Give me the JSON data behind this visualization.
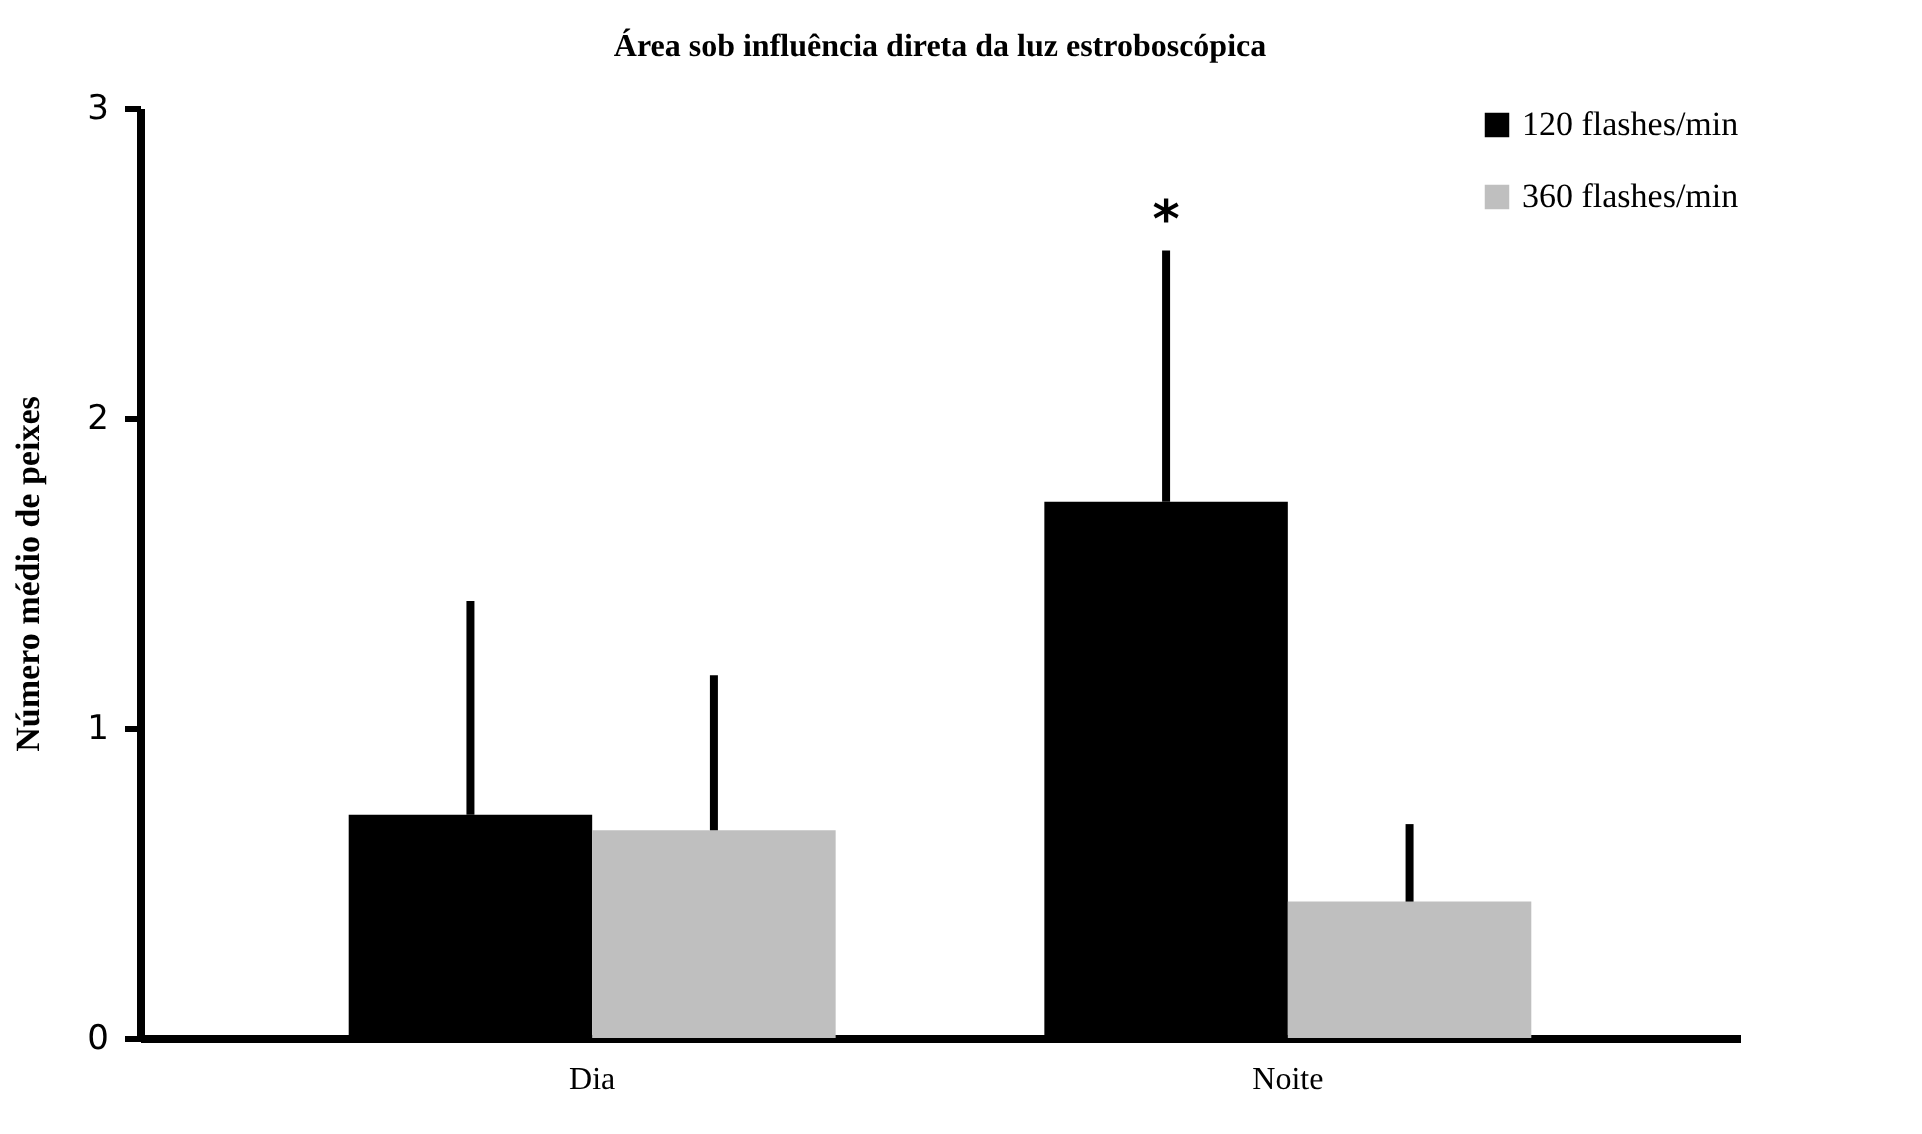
{
  "chart_data": {
    "type": "bar",
    "title": "Área sob influência direta da luz estroboscópica",
    "ylabel": "Número médio de peixes",
    "categories": [
      "Dia",
      "Noite"
    ],
    "series": [
      {
        "name": "120 flashes/min",
        "color": "#000000",
        "values": [
          0.72,
          1.73
        ],
        "errors": [
          [
            0.72,
            1.41
          ],
          [
            1.73,
            2.54
          ]
        ]
      },
      {
        "name": "360 flashes/min",
        "color": "#bfbfbf",
        "values": [
          0.67,
          0.44
        ],
        "errors": [
          [
            0.67,
            1.17
          ],
          [
            0.44,
            0.69
          ]
        ]
      }
    ],
    "ylim": [
      0,
      3
    ],
    "yticks": [
      0,
      1,
      2,
      3
    ],
    "grid": false,
    "legend": "top right",
    "annotations": [
      "*"
    ]
  }
}
